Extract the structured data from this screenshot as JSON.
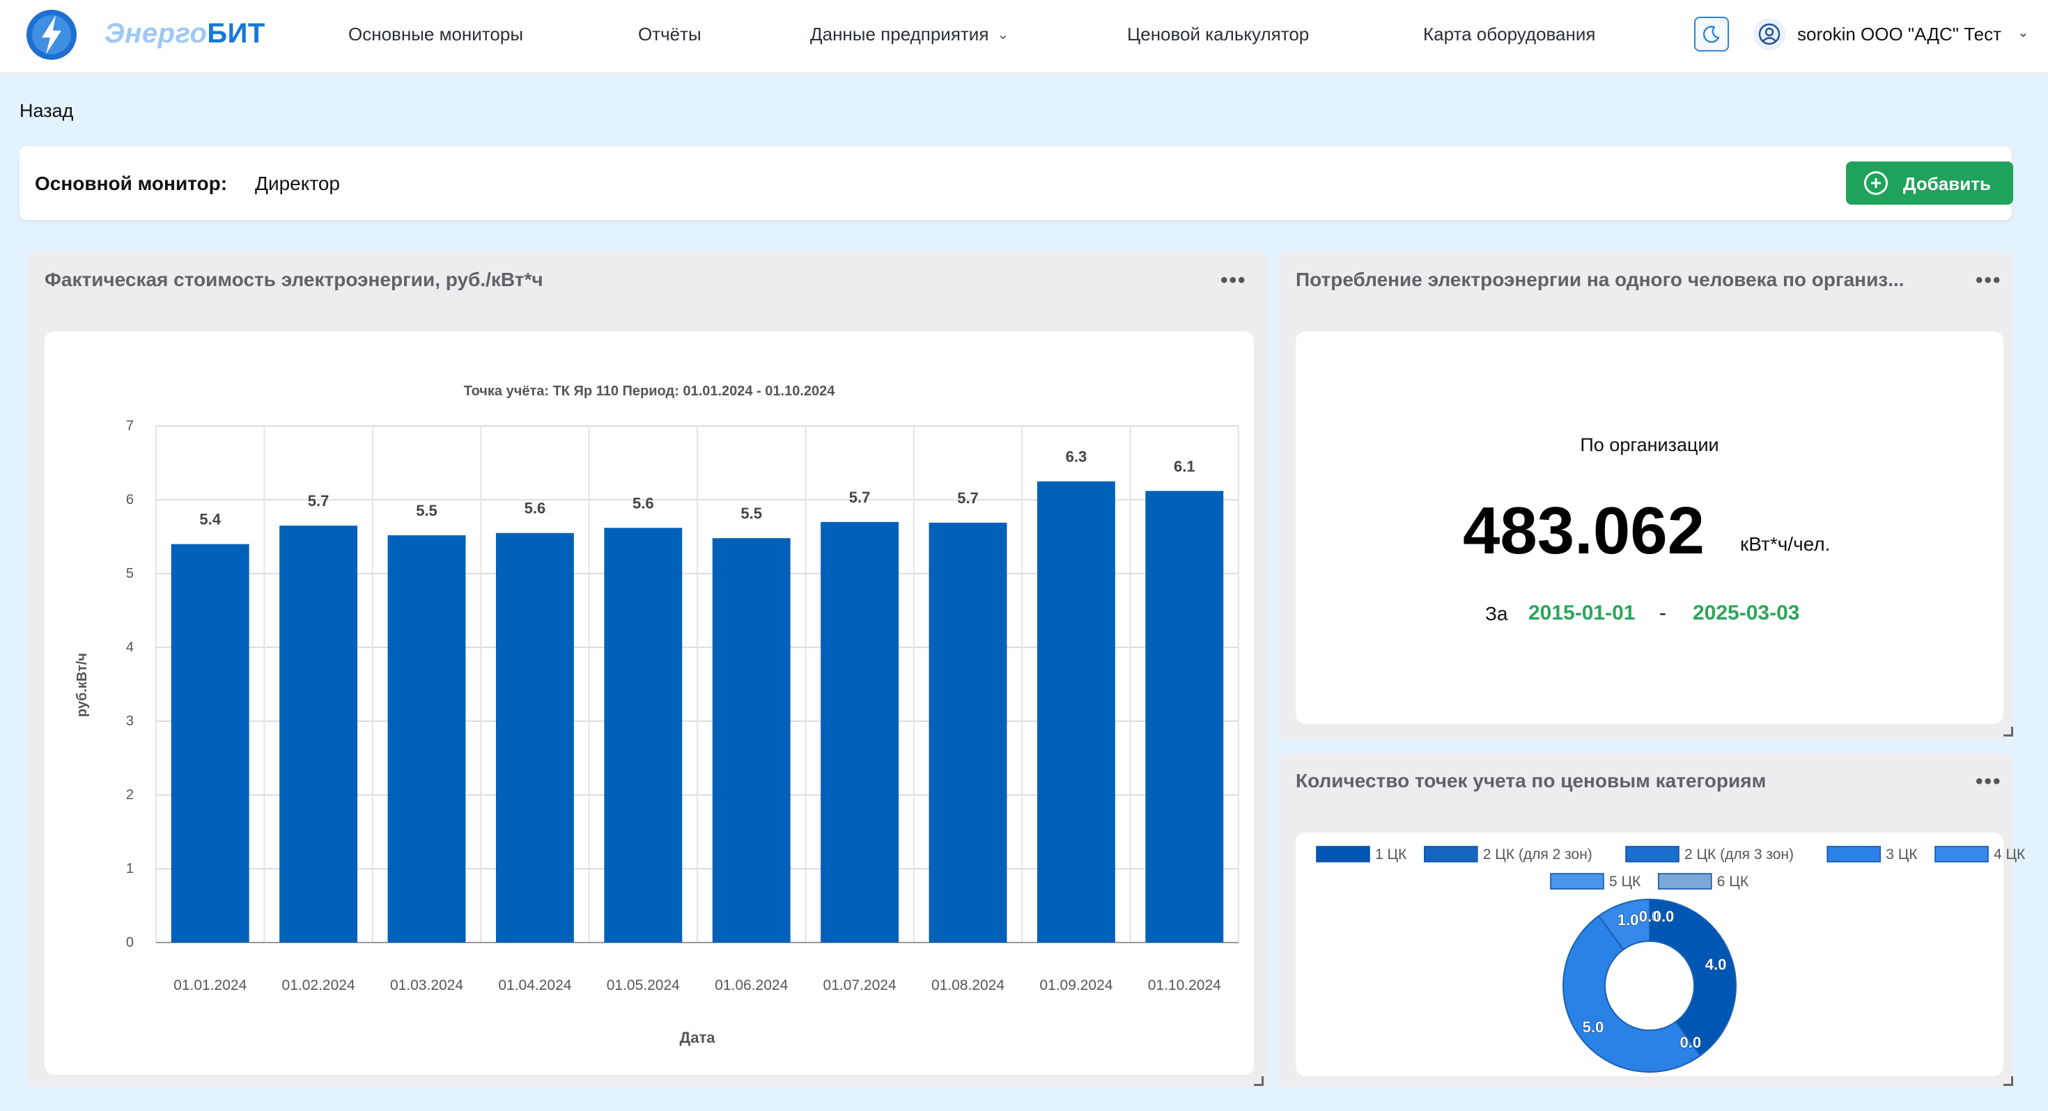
{
  "header": {
    "brand_part1": "Энерго",
    "brand_part2": "БИТ",
    "nav": [
      {
        "label": "Основные мониторы"
      },
      {
        "label": "Отчёты"
      },
      {
        "label": "Данные предприятия"
      },
      {
        "label": "Ценовой калькулятор"
      },
      {
        "label": "Карта оборудования"
      }
    ],
    "user_name": "sorokin ООО \"АДС\" Тест"
  },
  "back_label": "Назад",
  "monitor": {
    "label": "Основной монитор:",
    "value": "Директор",
    "add_label": "Добавить"
  },
  "colors": {
    "bar": "#0061b8",
    "accent_green": "#1fa25b",
    "date_green": "#2aa65a"
  },
  "panels": {
    "cost": {
      "title": "Фактическая стоимость электроэнергии, руб./кВт*ч"
    },
    "consumption": {
      "title": "Потребление электроэнергии на одного человека по организ...",
      "subtitle": "По организации",
      "value": "483.062",
      "unit": "кВт*ч/чел.",
      "period_prefix": "За",
      "date_from": "2015-01-01",
      "dash": "-",
      "date_to": "2025-03-03"
    },
    "points": {
      "title": "Количество точек учета по ценовым категориям"
    }
  },
  "chart_data": [
    {
      "type": "bar",
      "title": "Точка учёта: ТК Яр 110  Период: 01.01.2024 - 01.10.2024",
      "xlabel": "Дата",
      "ylabel": "руб.кВт/ч",
      "ylim": [
        0,
        7
      ],
      "yticks": [
        0,
        1,
        2,
        3,
        4,
        5,
        6,
        7
      ],
      "grid": true,
      "categories": [
        "01.01.2024",
        "01.02.2024",
        "01.03.2024",
        "01.04.2024",
        "01.05.2024",
        "01.06.2024",
        "01.07.2024",
        "01.08.2024",
        "01.09.2024",
        "01.10.2024"
      ],
      "values": [
        5.4,
        5.65,
        5.52,
        5.55,
        5.62,
        5.48,
        5.7,
        5.69,
        6.25,
        6.12
      ],
      "data_labels": [
        "5.4",
        "5.7",
        "5.5",
        "5.6",
        "5.6",
        "5.5",
        "5.7",
        "5.7",
        "6.3",
        "6.1"
      ],
      "color": "#0061b8"
    },
    {
      "type": "pie",
      "donut": true,
      "legend_position": "top",
      "categories": [
        "1 ЦК",
        "2 ЦК (для 2 зон)",
        "2 ЦК (для 3 зон)",
        "3 ЦК",
        "4 ЦК",
        "5 ЦК",
        "6 ЦК"
      ],
      "colors": [
        "#0057b3",
        "#1566c0",
        "#1c6fcf",
        "#2b82e6",
        "#3489ea",
        "#4996ec",
        "#7ba6d8"
      ],
      "values": [
        4.0,
        0.0,
        0.0,
        5.0,
        1.0,
        0.0,
        0.0
      ],
      "slice_labels": [
        "4.0",
        "0.0",
        "0.0",
        "5.0",
        "1.0",
        "0.0",
        "0.0"
      ]
    }
  ]
}
